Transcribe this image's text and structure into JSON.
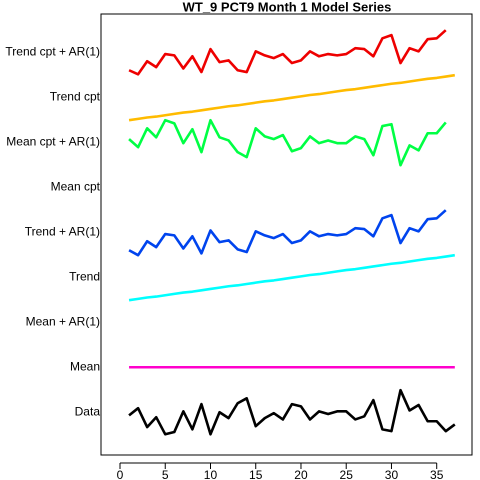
{
  "chart_data": {
    "type": "line",
    "title": "WT_9 PCT9 Month 1 Model Series",
    "x": [
      1,
      2,
      3,
      4,
      5,
      6,
      7,
      8,
      9,
      10,
      11,
      12,
      13,
      14,
      15,
      16,
      17,
      18,
      19,
      20,
      21,
      22,
      23,
      24,
      25,
      26,
      27,
      28,
      29,
      30,
      31,
      32,
      33,
      34,
      35,
      36,
      37
    ],
    "xlim": [
      -2.1,
      38.9
    ],
    "xticks": [
      0,
      5,
      10,
      15,
      20,
      25,
      30,
      35
    ],
    "ylim": [
      0.05,
      9.85
    ],
    "yticks": [
      {
        "value": 1,
        "label": "Data"
      },
      {
        "value": 2,
        "label": "Mean"
      },
      {
        "value": 3,
        "label": "Mean + AR(1)"
      },
      {
        "value": 4,
        "label": "Trend"
      },
      {
        "value": 5,
        "label": "Trend + AR(1)"
      },
      {
        "value": 6,
        "label": "Mean cpt"
      },
      {
        "value": 7,
        "label": "Mean cpt + AR(1)"
      },
      {
        "value": 8,
        "label": "Trend cpt"
      },
      {
        "value": 9,
        "label": "Trend cpt + AR(1)"
      }
    ],
    "series": [
      {
        "color": "#000000",
        "values": [
          0.93,
          1.09,
          0.67,
          0.89,
          0.51,
          0.56,
          1.02,
          0.62,
          1.18,
          0.51,
          1.0,
          0.87,
          1.2,
          1.31,
          0.69,
          0.87,
          0.98,
          0.84,
          1.18,
          1.13,
          0.84,
          1.02,
          0.96,
          1.02,
          1.02,
          0.84,
          0.91,
          1.27,
          0.62,
          0.58,
          1.49,
          1.04,
          1.16,
          0.8,
          0.8,
          0.58,
          0.73
        ]
      },
      {
        "color": "#ff00cc",
        "values": [
          2,
          2,
          2,
          2,
          2,
          2,
          2,
          2,
          2,
          2,
          2,
          2,
          2,
          2,
          2,
          2,
          2,
          2,
          2,
          2,
          2,
          2,
          2,
          2,
          2,
          2,
          2,
          2,
          2,
          2,
          2,
          2,
          2,
          2,
          2,
          2,
          2
        ]
      },
      {
        "color": "#00ffff",
        "values": [
          3.49,
          3.52,
          3.55,
          3.57,
          3.6,
          3.63,
          3.66,
          3.68,
          3.71,
          3.74,
          3.77,
          3.8,
          3.82,
          3.85,
          3.88,
          3.91,
          3.93,
          3.96,
          3.99,
          4.02,
          4.05,
          4.07,
          4.1,
          4.13,
          4.16,
          4.18,
          4.21,
          4.24,
          4.27,
          4.3,
          4.32,
          4.35,
          4.38,
          4.41,
          4.43,
          4.46,
          4.49
        ]
      },
      {
        "color": "#0044ee",
        "values": [
          4.6,
          4.49,
          4.8,
          4.67,
          4.96,
          4.93,
          4.64,
          4.91,
          4.53,
          5.04,
          4.78,
          4.82,
          4.62,
          4.56,
          5.02,
          4.93,
          4.87,
          4.96,
          4.76,
          4.82,
          5.02,
          4.91,
          4.96,
          4.93,
          4.96,
          5.09,
          5.07,
          4.91,
          5.31,
          5.38,
          4.76,
          5.09,
          5.02,
          5.29,
          5.31,
          5.49,
          null
        ]
      },
      {
        "color": "#00ff44",
        "values": [
          7.07,
          6.89,
          7.31,
          7.11,
          7.49,
          7.42,
          6.98,
          7.29,
          6.78,
          7.49,
          7.11,
          7.04,
          6.78,
          6.67,
          7.31,
          7.13,
          7.07,
          7.16,
          6.8,
          6.87,
          7.13,
          6.98,
          7.04,
          6.98,
          6.98,
          7.13,
          7.07,
          6.71,
          7.36,
          7.4,
          6.49,
          6.93,
          6.82,
          7.2,
          7.2,
          7.44,
          null
        ]
      },
      {
        "color": "#ffbb00",
        "values": [
          7.49,
          7.52,
          7.55,
          7.57,
          7.6,
          7.63,
          7.66,
          7.68,
          7.71,
          7.74,
          7.77,
          7.8,
          7.82,
          7.85,
          7.88,
          7.91,
          7.93,
          7.96,
          7.99,
          8.02,
          8.05,
          8.07,
          8.1,
          8.13,
          8.16,
          8.18,
          8.21,
          8.24,
          8.27,
          8.3,
          8.32,
          8.35,
          8.38,
          8.41,
          8.43,
          8.46,
          8.49
        ]
      },
      {
        "color": "#ee0000",
        "values": [
          8.6,
          8.51,
          8.8,
          8.67,
          8.96,
          8.93,
          8.64,
          8.91,
          8.56,
          9.07,
          8.78,
          8.82,
          8.6,
          8.56,
          9.02,
          8.93,
          8.87,
          8.96,
          8.76,
          8.82,
          9.02,
          8.91,
          8.96,
          8.93,
          8.96,
          9.09,
          9.07,
          8.91,
          9.31,
          9.38,
          8.76,
          9.09,
          9.02,
          9.29,
          9.31,
          9.49,
          null
        ]
      }
    ]
  }
}
